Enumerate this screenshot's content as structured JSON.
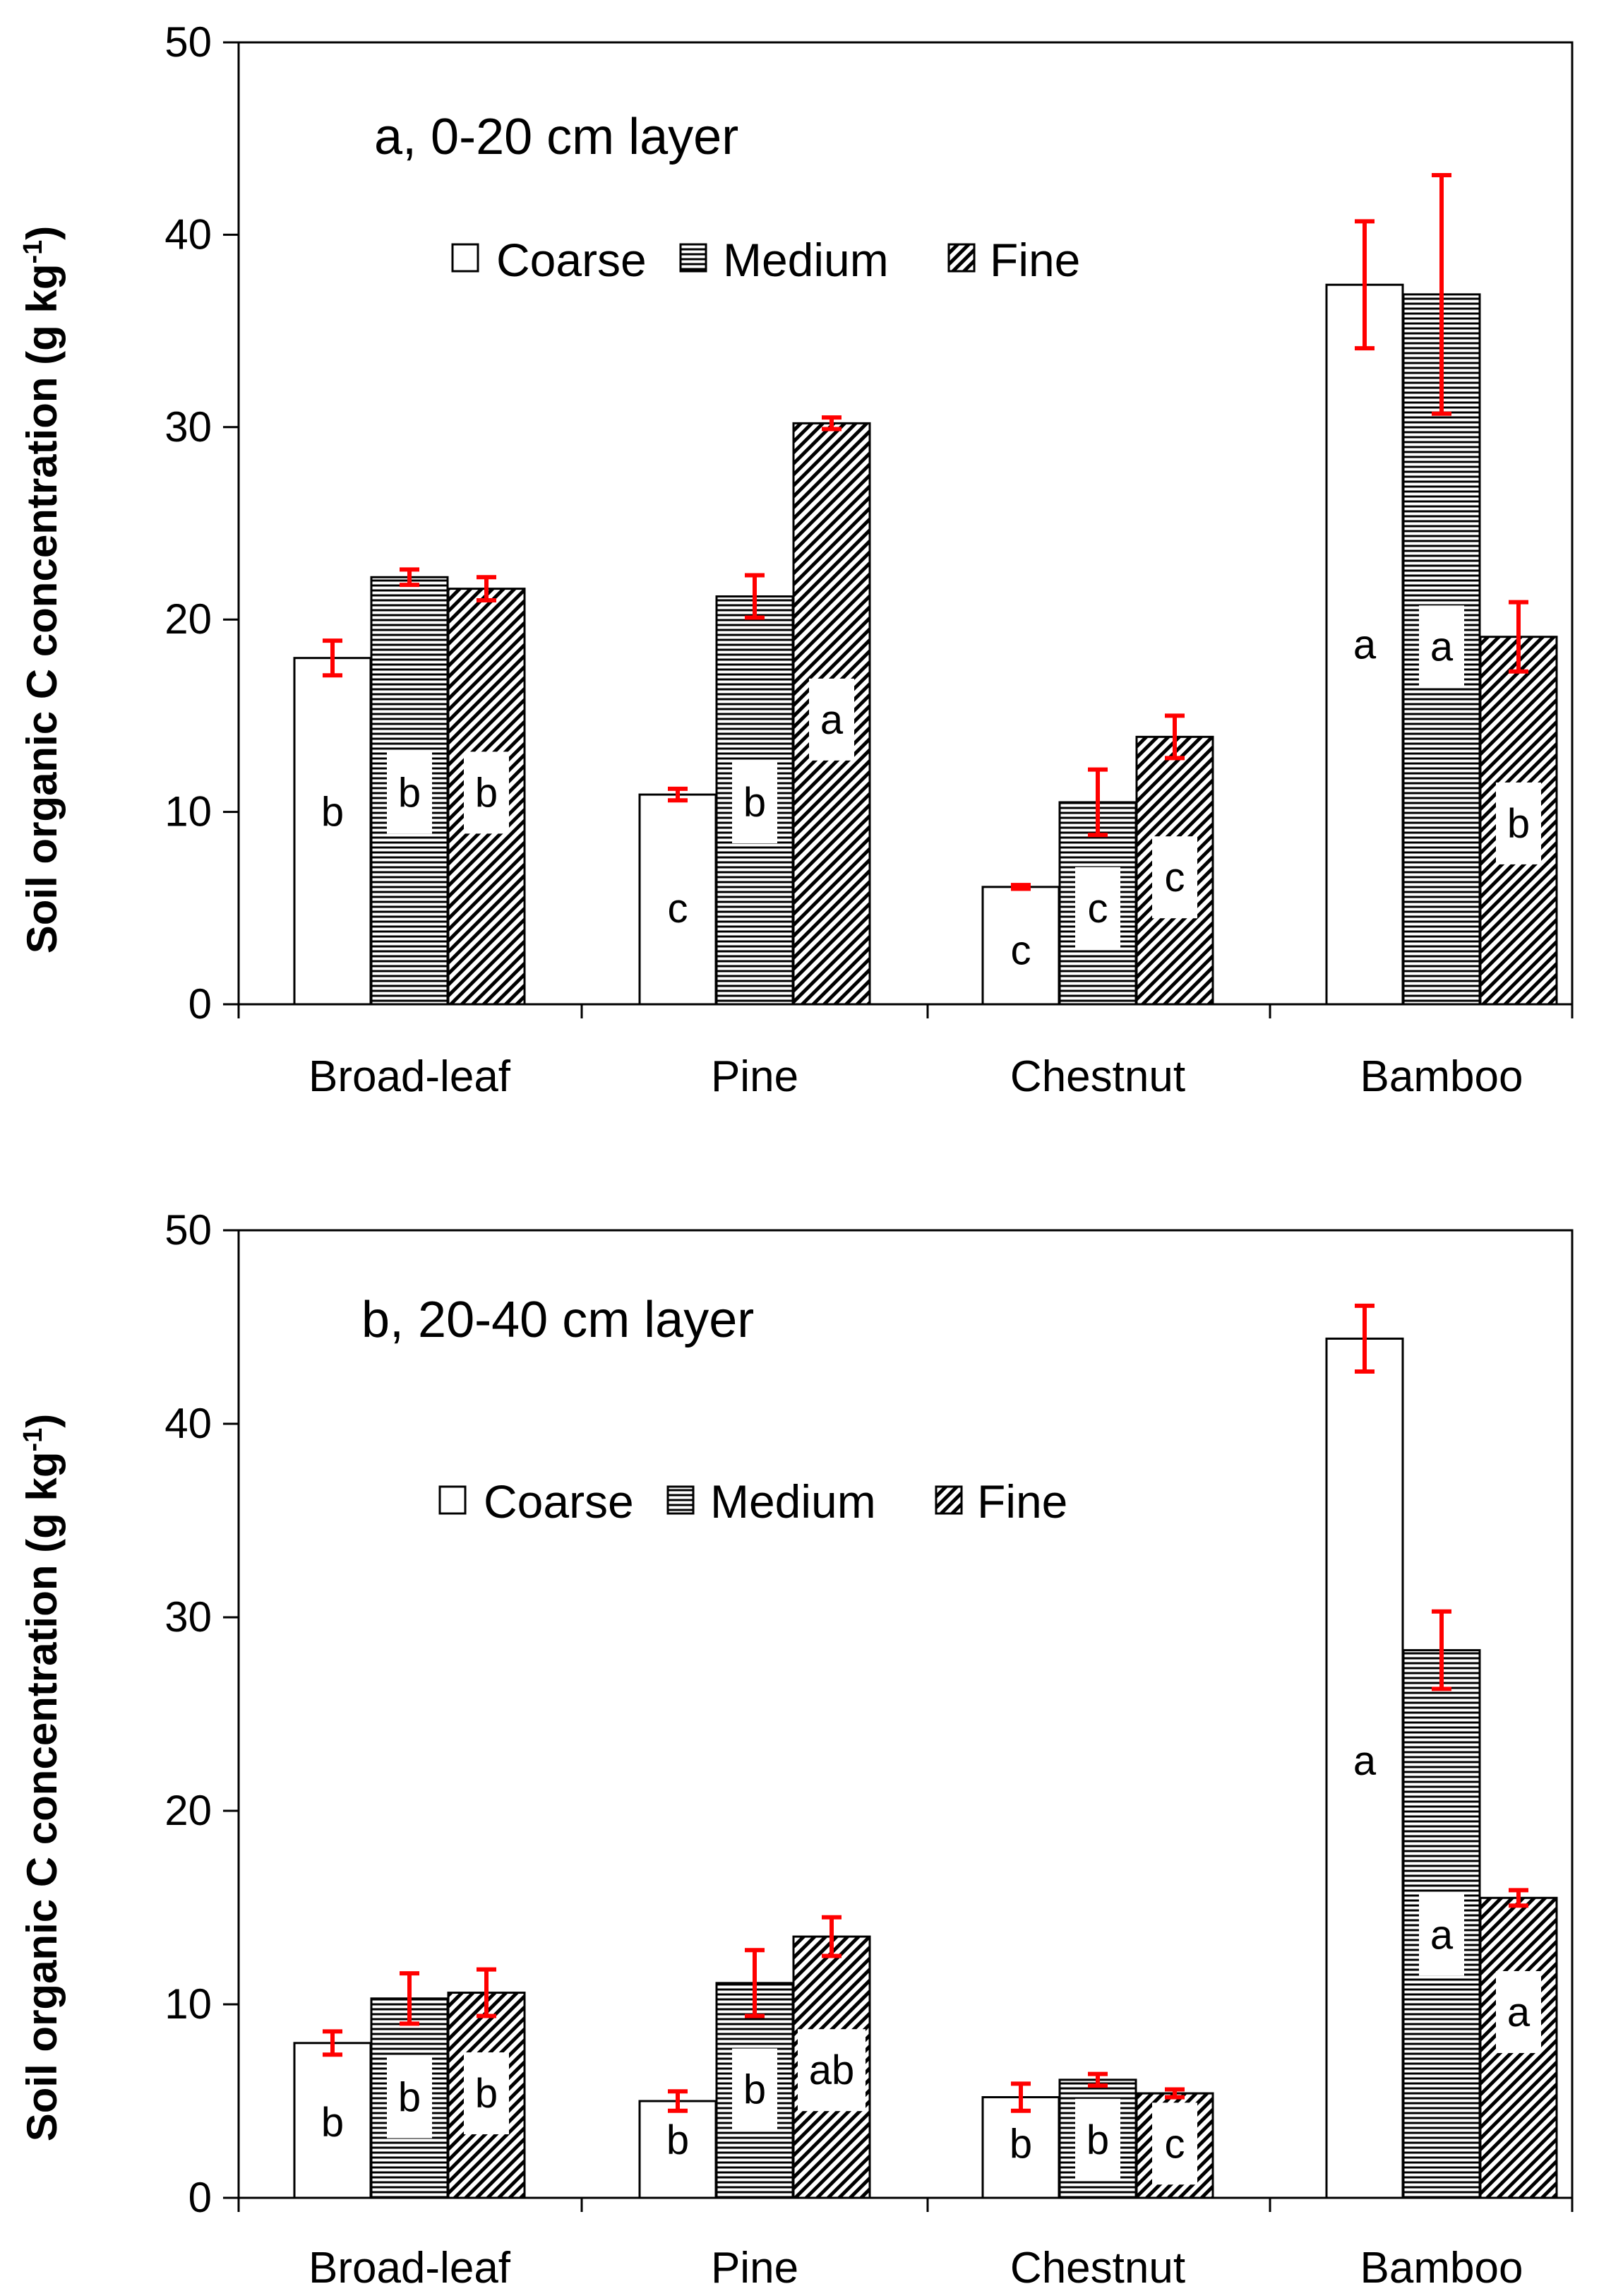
{
  "chart_data": [
    {
      "type": "bar",
      "panel": "a",
      "title": "a, 0-20 cm layer",
      "ylabel": "Soil organic C concentration (g kg",
      "ylabel_sup": "-1",
      "ylabel_close": ")",
      "ylim": [
        0,
        50
      ],
      "yticks": [
        "0",
        "10",
        "20",
        "30",
        "40",
        "50"
      ],
      "categories": [
        "Broad-leaf",
        "Pine",
        "Chestnut",
        "Bamboo"
      ],
      "legend": [
        "Coarse",
        "Medium",
        "Fine"
      ],
      "legend_position": "top-center",
      "series": [
        {
          "name": "Coarse",
          "pattern": "none",
          "values": [
            18.0,
            10.9,
            6.1,
            37.4
          ],
          "errors": [
            0.9,
            0.3,
            0.1,
            3.3
          ],
          "letters": [
            "b",
            "c",
            "c",
            "a"
          ]
        },
        {
          "name": "Medium",
          "pattern": "horizontal",
          "values": [
            22.2,
            21.2,
            10.5,
            36.9
          ],
          "errors": [
            0.4,
            1.1,
            1.7,
            6.2
          ],
          "letters": [
            "b",
            "b",
            "c",
            "a"
          ]
        },
        {
          "name": "Fine",
          "pattern": "diagonal",
          "values": [
            21.6,
            30.2,
            13.9,
            19.1
          ],
          "errors": [
            0.6,
            0.3,
            1.1,
            1.8
          ],
          "letters": [
            "b",
            "a",
            "c",
            "b"
          ]
        }
      ]
    },
    {
      "type": "bar",
      "panel": "b",
      "title": "b, 20-40 cm layer",
      "ylabel": "Soil organic C concentration (g kg",
      "ylabel_sup": "-1",
      "ylabel_close": ")",
      "ylim": [
        0,
        50
      ],
      "yticks": [
        "0",
        "10",
        "20",
        "30",
        "40",
        "50"
      ],
      "categories": [
        "Broad-leaf",
        "Pine",
        "Chestnut",
        "Bamboo"
      ],
      "legend": [
        "Coarse",
        "Medium",
        "Fine"
      ],
      "legend_position": "top-center",
      "series": [
        {
          "name": "Coarse",
          "pattern": "none",
          "values": [
            8.0,
            5.0,
            5.2,
            44.4
          ],
          "errors": [
            0.6,
            0.5,
            0.7,
            1.7
          ],
          "letters": [
            "b",
            "b",
            "b",
            "a"
          ]
        },
        {
          "name": "Medium",
          "pattern": "horizontal",
          "values": [
            10.3,
            11.1,
            6.1,
            28.3
          ],
          "errors": [
            1.3,
            1.7,
            0.3,
            2.0
          ],
          "letters": [
            "b",
            "b",
            "b",
            "a"
          ]
        },
        {
          "name": "Fine",
          "pattern": "diagonal",
          "values": [
            10.6,
            13.5,
            5.4,
            15.5
          ],
          "errors": [
            1.2,
            1.0,
            0.2,
            0.4
          ],
          "letters": [
            "b",
            "ab",
            "c",
            "a"
          ]
        }
      ]
    }
  ],
  "colors": {
    "bar_fill": "#ffffff",
    "bar_stroke": "#000000",
    "error_bar": "#ff0000",
    "axis": "#000000"
  }
}
